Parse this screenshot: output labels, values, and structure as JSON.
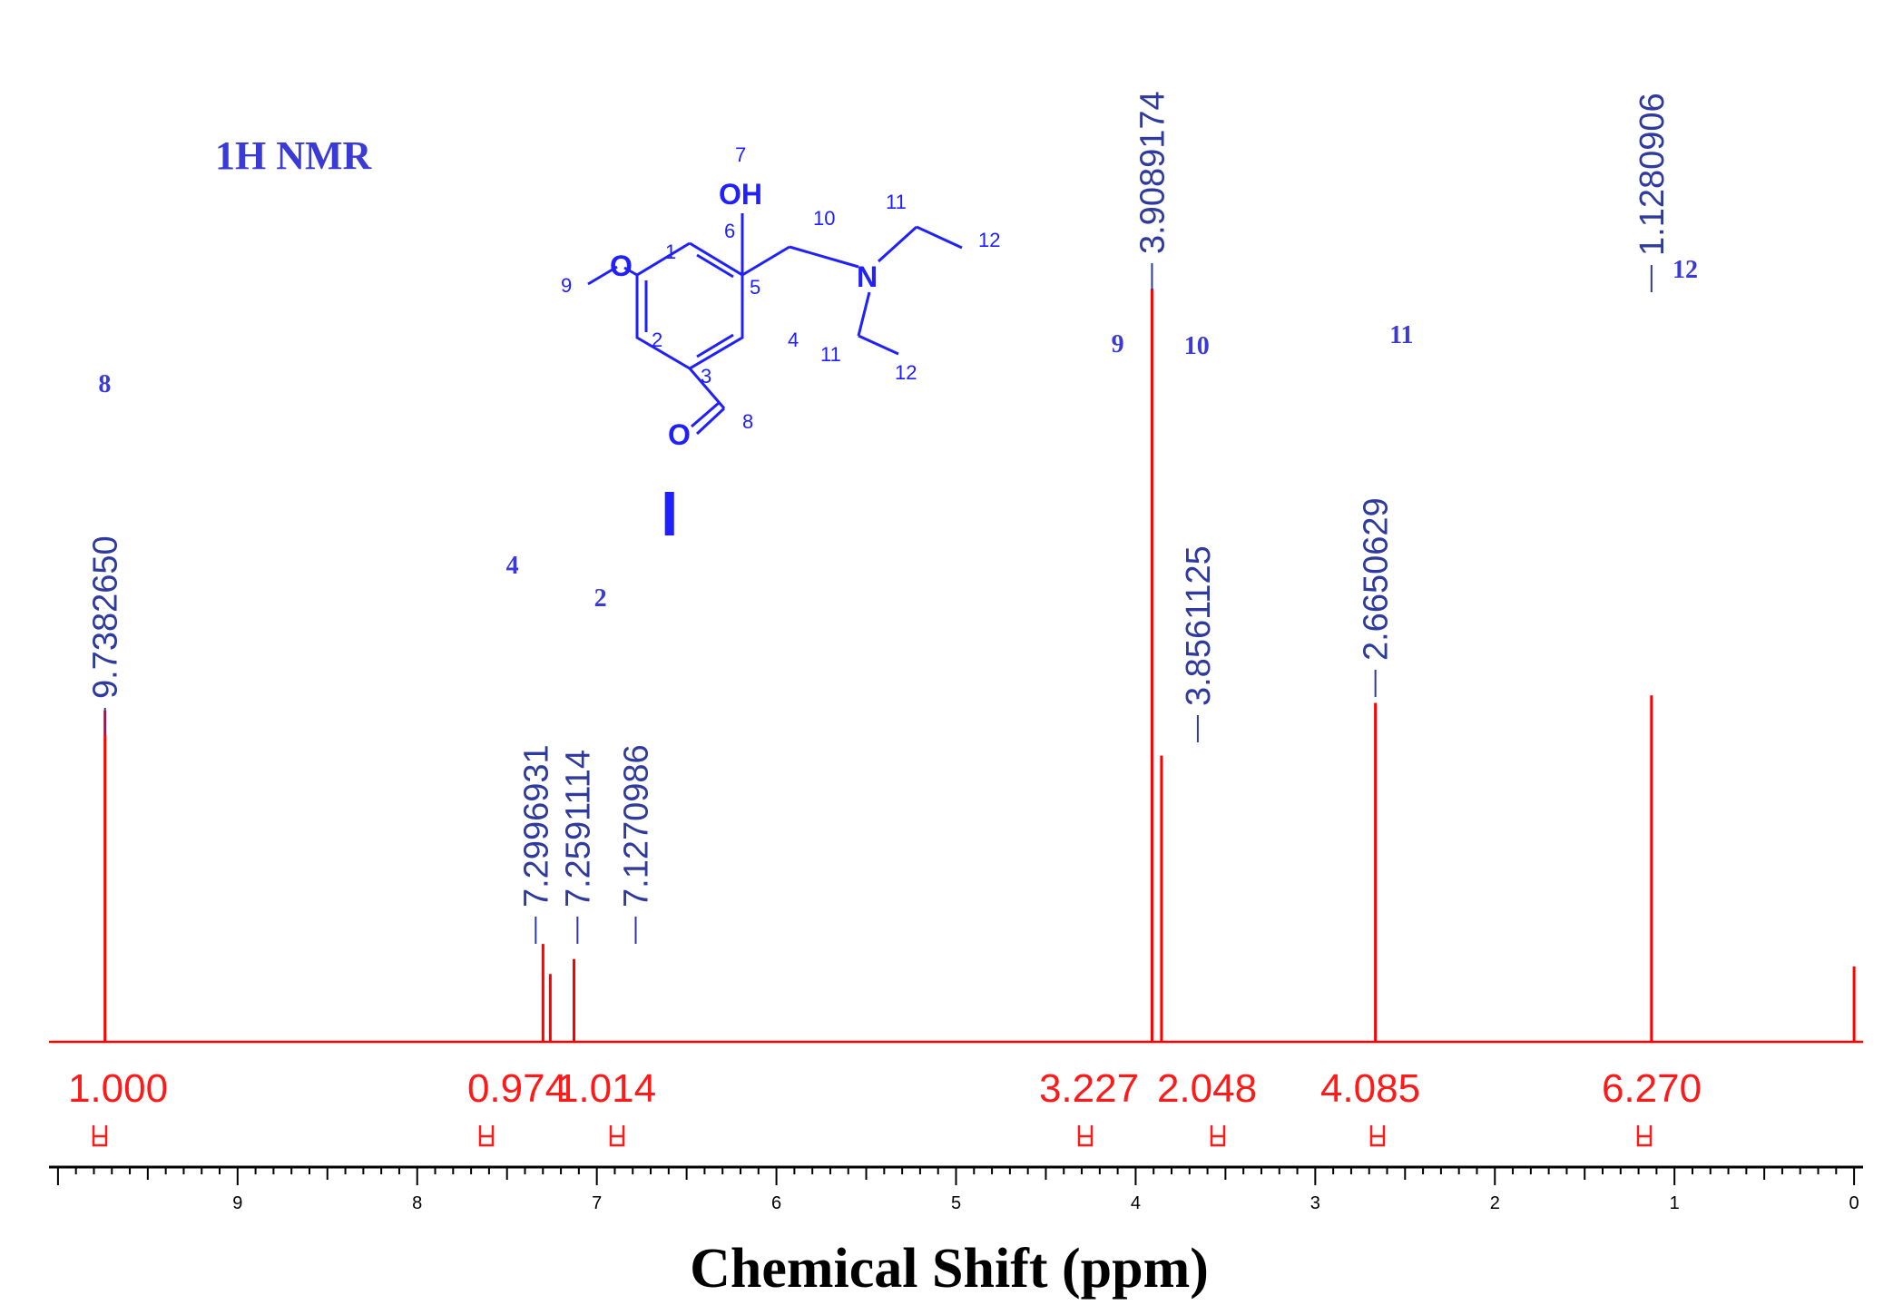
{
  "chart_data": {
    "type": "line",
    "title": "1H NMR",
    "xlabel": "Chemical Shift (ppm)",
    "ylabel": "",
    "xlim": [
      10.05,
      -0.05
    ],
    "x_reversed": true,
    "ylim": [
      0,
      1
    ],
    "grid": false,
    "x_ticks": [
      "9",
      "8",
      "7",
      "6",
      "5",
      "4",
      "3",
      "2",
      "1",
      "0"
    ],
    "series": [
      {
        "values": [
          {
            "x": 9.738265,
            "y": 0.44
          },
          {
            "x": 7.2996931,
            "y": 0.13
          },
          {
            "x": 7.2591114,
            "y": 0.09
          },
          {
            "x": 7.1270986,
            "y": 0.11
          },
          {
            "x": 3.9089174,
            "y": 1.0
          },
          {
            "x": 3.8561125,
            "y": 0.38
          },
          {
            "x": 2.6650629,
            "y": 0.45
          },
          {
            "x": 1.1280906,
            "y": 0.46
          },
          {
            "x": 0.0,
            "y": 0.1
          }
        ]
      }
    ],
    "peak_labels": [
      {
        "ppm": 9.738265,
        "label": "9.7382650"
      },
      {
        "ppm": 7.2996931,
        "label": "7.2996931"
      },
      {
        "ppm": 7.2591114,
        "label": "7.2591114"
      },
      {
        "ppm": 7.1270986,
        "label": "7.1270986"
      },
      {
        "ppm": 3.9089174,
        "label": "3.9089174"
      },
      {
        "ppm": 3.8561125,
        "label": "3.8561125"
      },
      {
        "ppm": 2.6650629,
        "label": "2.6650629"
      },
      {
        "ppm": 1.1280906,
        "label": "1.1280906"
      }
    ],
    "integrals": [
      {
        "value": "1.000",
        "from": 9.75,
        "to": 9.72
      },
      {
        "value": "0.974",
        "from": 7.31,
        "to": 7.28
      },
      {
        "value": "1.014",
        "from": 7.14,
        "to": 7.11
      },
      {
        "value": "3.227",
        "from": 3.925,
        "to": 3.89
      },
      {
        "value": "2.048",
        "from": 3.87,
        "to": 3.84
      },
      {
        "value": "4.085",
        "from": 2.7,
        "to": 2.63
      },
      {
        "value": "6.270",
        "from": 1.16,
        "to": 1.1
      }
    ],
    "assignments": [
      {
        "label": "8",
        "ppm": 9.74
      },
      {
        "label": "4",
        "ppm": 7.47
      },
      {
        "label": "2",
        "ppm": 6.98
      },
      {
        "label": "9",
        "ppm": 4.1
      },
      {
        "label": "10",
        "ppm": 3.66
      },
      {
        "label": "11",
        "ppm": 2.52
      },
      {
        "label": "12",
        "ppm": 0.94
      }
    ],
    "structure": {
      "compound_label": "I",
      "atom_numbers": [
        "1",
        "2",
        "3",
        "4",
        "5",
        "6",
        "7",
        "8",
        "9",
        "10",
        "11",
        "11",
        "12",
        "12"
      ],
      "atoms": [
        "OH",
        "O",
        "N",
        "O"
      ]
    },
    "colors": {
      "spectrum": "#ff0000",
      "peak_labels": "#2e3a9e",
      "assignments": "#3a3ad6",
      "integrals": "#ff1a1a",
      "structure": "#2020ff"
    }
  }
}
